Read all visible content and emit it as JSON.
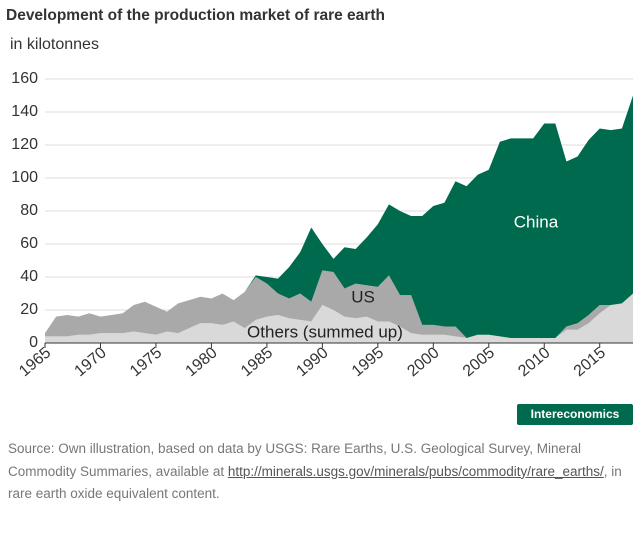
{
  "chart_data": {
    "type": "stacked_area",
    "title": "Development of the production market of rare earth",
    "subtitle": "in kilotonnes",
    "x": [
      1965,
      1966,
      1967,
      1968,
      1969,
      1970,
      1971,
      1972,
      1973,
      1974,
      1975,
      1976,
      1977,
      1978,
      1979,
      1980,
      1981,
      1982,
      1983,
      1984,
      1985,
      1986,
      1987,
      1988,
      1989,
      1990,
      1991,
      1992,
      1993,
      1994,
      1995,
      1996,
      1997,
      1998,
      1999,
      2000,
      2001,
      2002,
      2003,
      2004,
      2005,
      2006,
      2007,
      2008,
      2009,
      2010,
      2011,
      2012,
      2013,
      2014,
      2015,
      2016,
      2017,
      2018
    ],
    "series": [
      {
        "name": "Others (summed up)",
        "color": "#d9d9d9",
        "values": [
          4,
          4,
          4,
          5,
          5,
          6,
          6,
          6,
          7,
          6,
          5,
          7,
          6,
          9,
          12,
          12,
          11,
          13,
          9,
          14,
          16,
          17,
          15,
          14,
          13,
          23,
          20,
          16,
          15,
          16,
          13,
          13,
          10,
          6,
          5,
          5,
          5,
          4,
          3,
          5,
          5,
          4,
          3,
          3,
          3,
          3,
          3,
          8,
          8,
          12,
          18,
          23,
          24,
          30
        ]
      },
      {
        "name": "US",
        "color": "#a9a9a9",
        "values": [
          2,
          12,
          13,
          11,
          13,
          10,
          11,
          12,
          16,
          19,
          17,
          12,
          18,
          17,
          16,
          15,
          19,
          13,
          22,
          26,
          20,
          13,
          12,
          16,
          12,
          21,
          23,
          17,
          21,
          19,
          21,
          28,
          19,
          23,
          6,
          6,
          5,
          6,
          0,
          0,
          0,
          0,
          0,
          0,
          0,
          0,
          0,
          2,
          4,
          5,
          5,
          0,
          0,
          0
        ]
      },
      {
        "name": "China",
        "color": "#006a4e",
        "values": [
          0,
          0,
          0,
          0,
          0,
          0,
          0,
          0,
          0,
          0,
          0,
          0,
          0,
          0,
          0,
          0,
          0,
          0,
          0,
          1,
          4,
          9,
          19,
          25,
          45,
          16,
          8,
          25,
          21,
          29,
          38,
          43,
          51,
          48,
          66,
          72,
          75,
          88,
          92,
          97,
          100,
          118,
          121,
          121,
          121,
          130,
          130,
          100,
          101,
          106,
          107,
          106,
          106,
          120
        ]
      }
    ],
    "xlim": [
      1965,
      2018
    ],
    "xticks": [
      1965,
      1970,
      1975,
      1980,
      1985,
      1990,
      1995,
      2000,
      2005,
      2010,
      2015
    ],
    "ylim": [
      0,
      160
    ],
    "yticks": [
      0,
      20,
      40,
      60,
      80,
      100,
      120,
      140,
      160
    ],
    "grid": true
  },
  "brand": "Intereconomics",
  "source": {
    "before": "Source: Own illustration, based on data by USGS: Rare Earths, U.S. Geological Survey, Mineral Commodity Summaries, available at ",
    "link": "http://minerals.usgs.gov/minerals/pubs/commodity/rare_earths/",
    "after": ", in rare earth oxide equivalent content."
  }
}
